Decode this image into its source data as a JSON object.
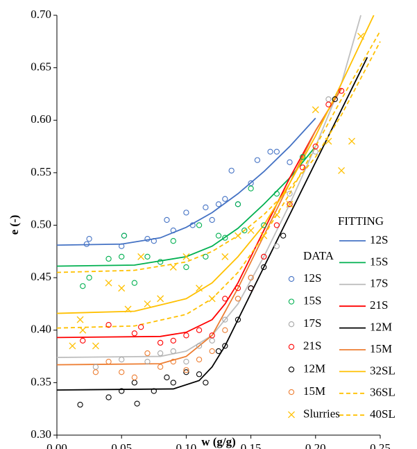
{
  "chart_data": {
    "type": "scatter",
    "xlabel": "w (g/g)",
    "ylabel": "e (-)",
    "xlim": [
      0,
      0.25
    ],
    "ylim": [
      0.3,
      0.7
    ],
    "xticks": [
      {
        "value": 0,
        "label": "0.00"
      },
      0.05,
      {
        "value": 0.1,
        "label": "0.10"
      },
      0.15,
      {
        "value": 0.2,
        "label": "0.20"
      },
      0.25
    ],
    "yticks": [
      {
        "value": 0.3,
        "label": "0.30"
      },
      0.35,
      {
        "value": 0.4,
        "label": "0.40"
      },
      0.45,
      {
        "value": 0.5,
        "label": "0.50"
      },
      0.55,
      {
        "value": 0.6,
        "label": "0.60"
      },
      0.65,
      {
        "value": 0.7,
        "label": "0.70"
      }
    ],
    "data_legend_title": "DATA",
    "fitting_legend_title": "FITTING",
    "series": [
      {
        "name": "12S",
        "color": "#4472c4",
        "marker": "circle",
        "x": [
          0.023,
          0.025,
          0.05,
          0.052,
          0.07,
          0.075,
          0.085,
          0.09,
          0.1,
          0.105,
          0.115,
          0.12,
          0.125,
          0.13,
          0.135,
          0.14,
          0.15,
          0.155,
          0.165,
          0.17,
          0.18
        ],
        "values": [
          0.482,
          0.487,
          0.48,
          0.49,
          0.487,
          0.485,
          0.505,
          0.495,
          0.512,
          0.5,
          0.517,
          0.505,
          0.52,
          0.525,
          0.552,
          0.52,
          0.54,
          0.562,
          0.57,
          0.57,
          0.56
        ]
      },
      {
        "name": "15S",
        "color": "#00b050",
        "marker": "circle",
        "x": [
          0.02,
          0.025,
          0.04,
          0.05,
          0.052,
          0.06,
          0.07,
          0.08,
          0.09,
          0.1,
          0.11,
          0.115,
          0.125,
          0.13,
          0.14,
          0.145,
          0.15,
          0.16,
          0.17,
          0.18,
          0.19
        ],
        "values": [
          0.442,
          0.45,
          0.468,
          0.47,
          0.49,
          0.445,
          0.47,
          0.465,
          0.485,
          0.46,
          0.5,
          0.47,
          0.49,
          0.488,
          0.52,
          0.495,
          0.535,
          0.5,
          0.53,
          0.52,
          0.565
        ]
      },
      {
        "name": "17S",
        "color": "#a6a6a6",
        "marker": "circle",
        "x": [
          0.03,
          0.05,
          0.07,
          0.08,
          0.09,
          0.1,
          0.11,
          0.12,
          0.13,
          0.14,
          0.15,
          0.16,
          0.17,
          0.18,
          0.2,
          0.21
        ],
        "values": [
          0.365,
          0.372,
          0.37,
          0.378,
          0.38,
          0.37,
          0.385,
          0.39,
          0.41,
          0.43,
          0.45,
          0.47,
          0.48,
          0.53,
          0.57,
          0.62
        ]
      },
      {
        "name": "21S",
        "color": "#ff0000",
        "marker": "circle",
        "x": [
          0.02,
          0.04,
          0.06,
          0.065,
          0.08,
          0.09,
          0.1,
          0.11,
          0.12,
          0.13,
          0.14,
          0.15,
          0.16,
          0.17,
          0.18,
          0.19,
          0.2,
          0.21,
          0.22
        ],
        "values": [
          0.39,
          0.405,
          0.397,
          0.403,
          0.388,
          0.39,
          0.395,
          0.4,
          0.395,
          0.43,
          0.44,
          0.44,
          0.47,
          0.5,
          0.52,
          0.555,
          0.575,
          0.615,
          0.628
        ]
      },
      {
        "name": "12M",
        "color": "#000000",
        "marker": "circle",
        "x": [
          0.018,
          0.04,
          0.05,
          0.06,
          0.062,
          0.075,
          0.085,
          0.09,
          0.1,
          0.11,
          0.115,
          0.125,
          0.13,
          0.14,
          0.15,
          0.16,
          0.175,
          0.215
        ],
        "values": [
          0.329,
          0.336,
          0.342,
          0.35,
          0.33,
          0.342,
          0.355,
          0.35,
          0.36,
          0.358,
          0.35,
          0.38,
          0.385,
          0.41,
          0.44,
          0.46,
          0.49,
          0.62
        ]
      },
      {
        "name": "15M",
        "color": "#ed7d31",
        "marker": "circle",
        "x": [
          0.03,
          0.04,
          0.05,
          0.06,
          0.07,
          0.08,
          0.09,
          0.1,
          0.11,
          0.12,
          0.13,
          0.14,
          0.15
        ],
        "values": [
          0.36,
          0.37,
          0.36,
          0.355,
          0.378,
          0.365,
          0.37,
          0.362,
          0.372,
          0.38,
          0.4,
          0.43,
          0.45
        ]
      },
      {
        "name": "Slurries",
        "color": "#ffc000",
        "marker": "cross",
        "x": [
          0.012,
          0.018,
          0.02,
          0.03,
          0.04,
          0.05,
          0.055,
          0.065,
          0.07,
          0.08,
          0.09,
          0.1,
          0.11,
          0.12,
          0.13,
          0.14,
          0.15,
          0.16,
          0.17,
          0.18,
          0.2,
          0.21,
          0.22,
          0.228,
          0.235
        ],
        "values": [
          0.385,
          0.41,
          0.4,
          0.385,
          0.445,
          0.44,
          0.42,
          0.47,
          0.425,
          0.43,
          0.46,
          0.47,
          0.44,
          0.43,
          0.47,
          0.49,
          0.495,
          0.49,
          0.51,
          0.52,
          0.61,
          0.58,
          0.552,
          0.58,
          0.68
        ]
      }
    ],
    "fits": [
      {
        "name": "12S",
        "color": "#4472c4",
        "dashed": false,
        "x": [
          0,
          0.05,
          0.08,
          0.1,
          0.12,
          0.14,
          0.16,
          0.18,
          0.2
        ],
        "values": [
          0.481,
          0.482,
          0.488,
          0.498,
          0.512,
          0.53,
          0.551,
          0.575,
          0.602
        ]
      },
      {
        "name": "15S",
        "color": "#00b050",
        "dashed": false,
        "x": [
          0,
          0.06,
          0.1,
          0.12,
          0.14,
          0.16,
          0.18,
          0.2
        ],
        "values": [
          0.461,
          0.462,
          0.47,
          0.48,
          0.497,
          0.52,
          0.545,
          0.575
        ]
      },
      {
        "name": "17S",
        "color": "#bfbfbf",
        "dashed": false,
        "x": [
          0,
          0.08,
          0.1,
          0.12,
          0.14,
          0.16,
          0.18,
          0.2,
          0.22,
          0.235
        ],
        "values": [
          0.374,
          0.375,
          0.38,
          0.395,
          0.425,
          0.47,
          0.52,
          0.575,
          0.635,
          0.7
        ]
      },
      {
        "name": "21S",
        "color": "#ff0000",
        "dashed": false,
        "x": [
          0,
          0.08,
          0.1,
          0.12,
          0.13,
          0.14,
          0.16,
          0.18,
          0.2,
          0.22
        ],
        "values": [
          0.393,
          0.394,
          0.398,
          0.41,
          0.425,
          0.445,
          0.495,
          0.545,
          0.59,
          0.63
        ]
      },
      {
        "name": "12M",
        "color": "#000000",
        "dashed": false,
        "x": [
          0,
          0.09,
          0.11,
          0.12,
          0.13,
          0.14,
          0.16,
          0.18,
          0.2,
          0.22,
          0.24
        ],
        "values": [
          0.343,
          0.344,
          0.352,
          0.365,
          0.385,
          0.41,
          0.46,
          0.51,
          0.56,
          0.61,
          0.66
        ]
      },
      {
        "name": "15M",
        "color": "#ed7d31",
        "dashed": false,
        "x": [
          0,
          0.08,
          0.1,
          0.12,
          0.14,
          0.16,
          0.18,
          0.2,
          0.22
        ],
        "values": [
          0.367,
          0.368,
          0.375,
          0.395,
          0.44,
          0.49,
          0.54,
          0.59,
          0.63
        ]
      },
      {
        "name": "32SL",
        "color": "#ffc000",
        "dashed": false,
        "x": [
          0,
          0.06,
          0.1,
          0.12,
          0.14,
          0.16,
          0.18,
          0.2,
          0.22,
          0.245
        ],
        "values": [
          0.416,
          0.418,
          0.43,
          0.445,
          0.47,
          0.5,
          0.54,
          0.585,
          0.635,
          0.7
        ]
      },
      {
        "name": "36SL",
        "color": "#ffc000",
        "dashed": true,
        "x": [
          0,
          0.06,
          0.1,
          0.12,
          0.14,
          0.16,
          0.18,
          0.2,
          0.22,
          0.25
        ],
        "values": [
          0.402,
          0.404,
          0.415,
          0.43,
          0.455,
          0.49,
          0.53,
          0.575,
          0.62,
          0.685
        ]
      },
      {
        "name": "40SL",
        "color": "#ffc000",
        "dashed": true,
        "x": [
          0,
          0.06,
          0.1,
          0.12,
          0.14,
          0.16,
          0.18,
          0.2,
          0.22,
          0.25
        ],
        "values": [
          0.455,
          0.457,
          0.465,
          0.475,
          0.49,
          0.51,
          0.535,
          0.565,
          0.605,
          0.675
        ]
      }
    ]
  }
}
